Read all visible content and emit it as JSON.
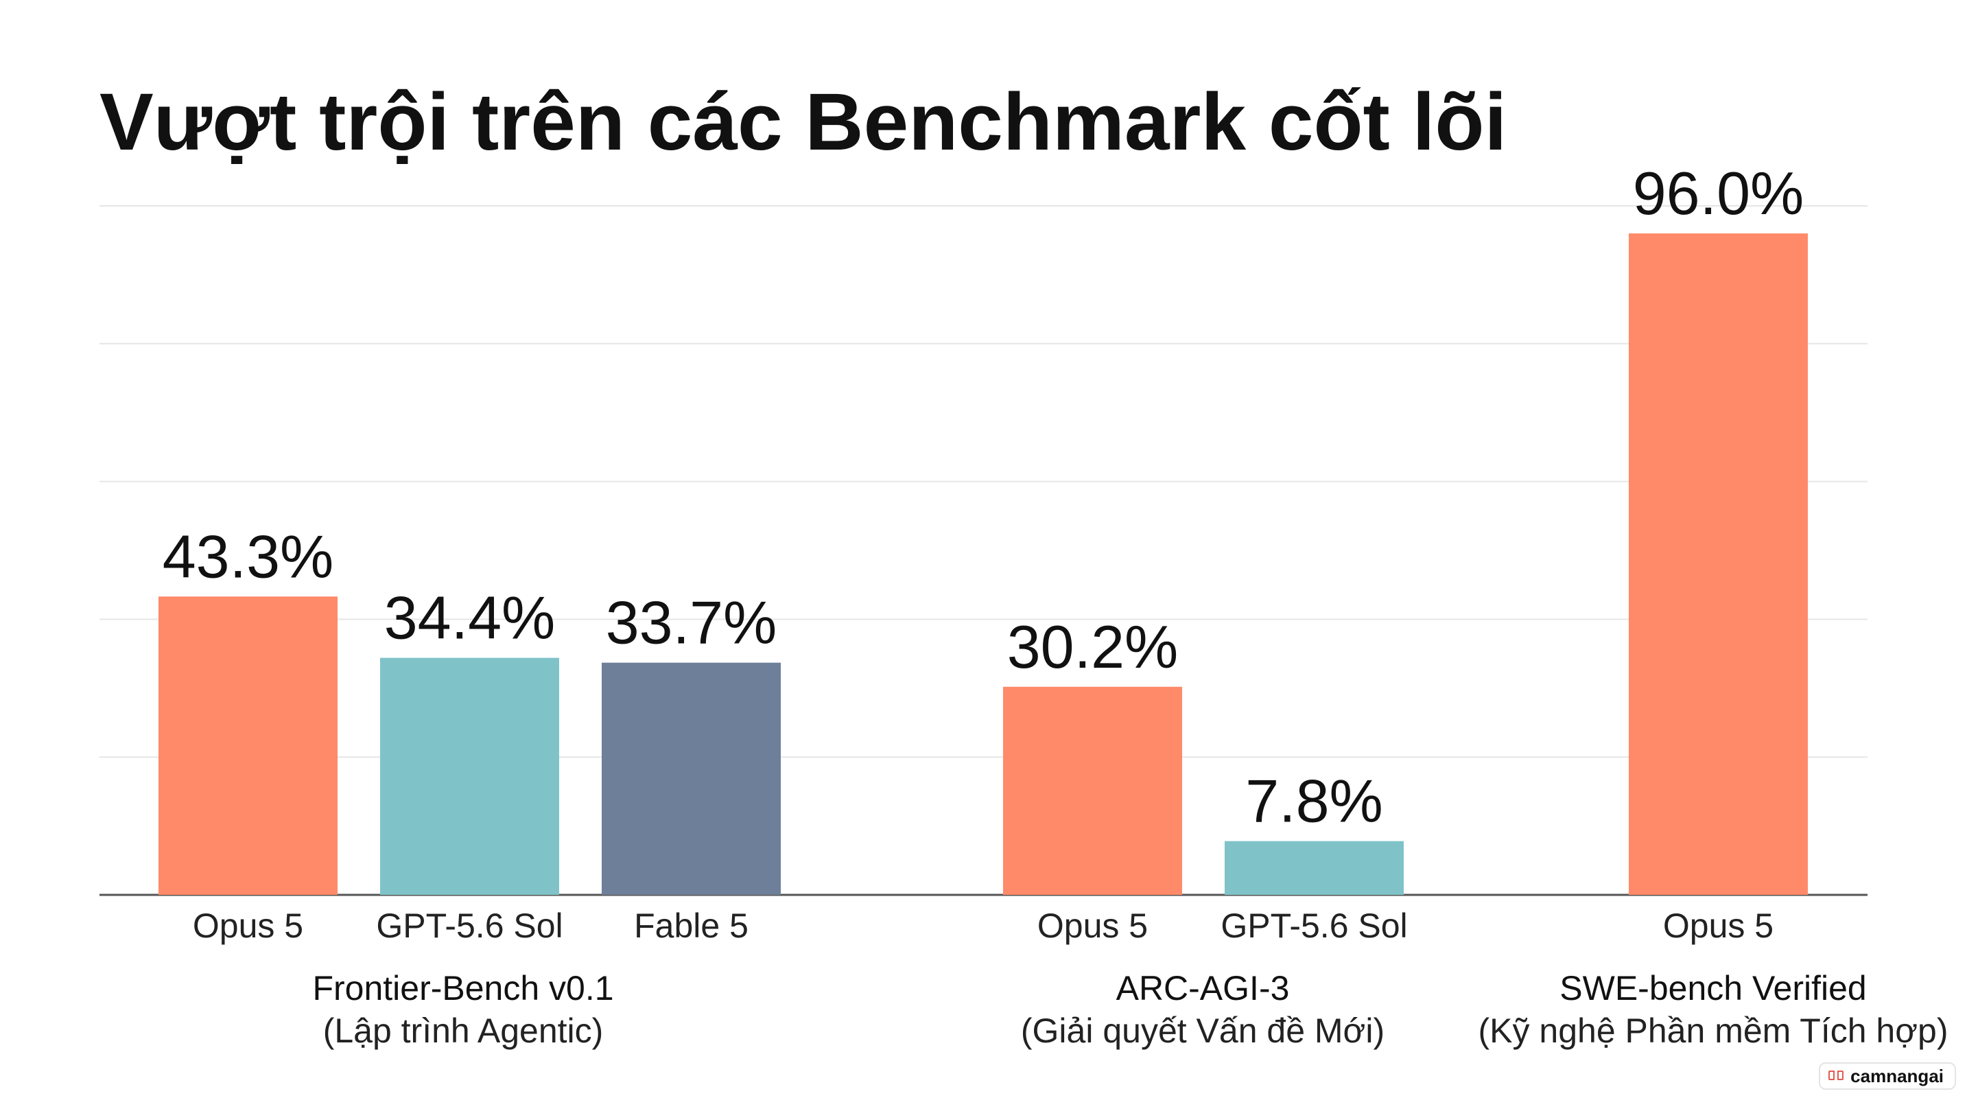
{
  "chart_data": {
    "type": "bar",
    "title": "Vượt trội trên các Benchmark cốt lõi",
    "ylim": [
      0,
      100
    ],
    "grid": true,
    "groups": [
      {
        "label": "Frontier-Bench v0.1",
        "sublabel": "(Lập trình Agentic)",
        "bars": [
          {
            "label": "Opus 5",
            "value": 43.3,
            "value_label": "43.3%",
            "color": "#FF8A69"
          },
          {
            "label": "GPT-5.6 Sol",
            "value": 34.4,
            "value_label": "34.4%",
            "color": "#7FC3C9"
          },
          {
            "label": "Fable 5",
            "value": 33.7,
            "value_label": "33.7%",
            "color": "#6E7F99"
          }
        ]
      },
      {
        "label": "ARC-AGI-3",
        "sublabel": "(Giải quyết Vấn đề Mới)",
        "bars": [
          {
            "label": "Opus 5",
            "value": 30.2,
            "value_label": "30.2%",
            "color": "#FF8A69"
          },
          {
            "label": "GPT-5.6 Sol",
            "value": 7.8,
            "value_label": "7.8%",
            "color": "#7FC3C9"
          }
        ]
      },
      {
        "label": "SWE-bench Verified",
        "sublabel": "(Kỹ nghệ Phần mềm Tích hợp)",
        "bars": [
          {
            "label": "Opus 5",
            "value": 96.0,
            "value_label": "96.0%",
            "color": "#FF8A69"
          }
        ]
      }
    ]
  },
  "colors": {
    "grid": "#E6E6E6",
    "axis": "#555555",
    "text": "#111111",
    "watermark_icon": "#E45B50"
  },
  "watermark": {
    "text": "camnangai",
    "icon": "book-icon"
  }
}
